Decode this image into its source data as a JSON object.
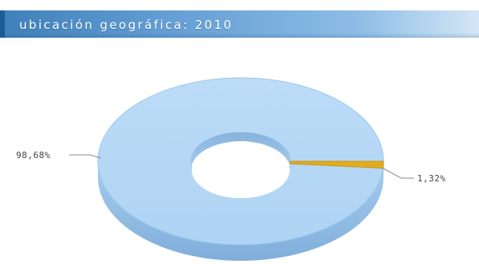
{
  "header": {
    "title": "ubicación geográfica: 2010"
  },
  "colors": {
    "header_start": "#3f7fb9",
    "header_end": "#d4e7f6",
    "slice_main": "#b6d9f7",
    "slice_main_side": "#8fbbe3",
    "slice_minor": "#e0ad1e",
    "label_text": "#444444"
  },
  "chart_data": {
    "type": "pie",
    "variant": "donut-3d",
    "title": "",
    "slices": [
      {
        "label": "98,68%",
        "value": 98.68
      },
      {
        "label": "1,32%",
        "value": 1.32
      }
    ],
    "legend": "none"
  }
}
